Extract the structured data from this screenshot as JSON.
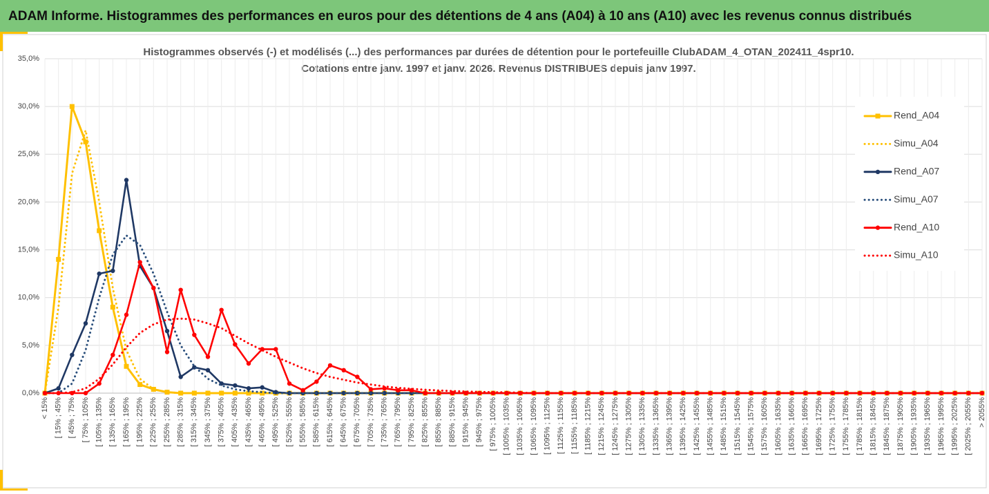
{
  "header": {
    "title": "ADAM Informe. Histogrammes des performances en euros pour des détentions de 4 ans (A04) à 10 ans (A10) avec les revenus connus distribués"
  },
  "chart_data": {
    "type": "line",
    "title": "Histogrammes observés (-) et modélisés (...) des performances par durées de détention pour le portefeuille ClubADAM_4_OTAN_202411_4spr10.",
    "subtitle": "Cotations entre janv. 1997 et janv. 2026. Revenus DISTRIBUES depuis janv 1997.",
    "categories": [
      "< 15%",
      "[ 15% ; 45%",
      "[ 45% ; 75%",
      "[ 75% ; 105%",
      "[ 105% ; 135%",
      "[ 135% ; 165%",
      "[ 165% ; 195%",
      "[ 195% ; 225%",
      "[ 225% ; 255%",
      "[ 255% ; 285%",
      "[ 285% ; 315%",
      "[ 315% ; 345%",
      "[ 345% ; 375%",
      "[ 375% ; 405%",
      "[ 405% ; 435%",
      "[ 435% ; 465%",
      "[ 465% ; 495%",
      "[ 495% ; 525%",
      "[ 525% ; 555%",
      "[ 555% ; 585%",
      "[ 585% ; 615%",
      "[ 615% ; 645%",
      "[ 645% ; 675%",
      "[ 675% ; 705%",
      "[ 705% ; 735%",
      "[ 735% ; 765%",
      "[ 765% ; 795%",
      "[ 795% ; 825%",
      "[ 825% ; 855%",
      "[ 855% ; 885%",
      "[ 885% ; 915%",
      "[ 915% ; 945%",
      "[ 945% ; 975%",
      "[ 975% ; 1005%",
      "[ 1005% ; 1035%",
      "[ 1035% ; 1065%",
      "[ 1065% ; 1095%",
      "[ 1095% ; 1125%",
      "[ 1125% ; 1155%",
      "[ 1155% ; 1185%",
      "[ 1185% ; 1215%",
      "[ 1215% ; 1245%",
      "[ 1245% ; 1275%",
      "[ 1275% ; 1305%",
      "[ 1305% ; 1335%",
      "[ 1335% ; 1365%",
      "[ 1365% ; 1395%",
      "[ 1395% ; 1425%",
      "[ 1425% ; 1455%",
      "[ 1455% ; 1485%",
      "[ 1485% ; 1515%",
      "[ 1515% ; 1545%",
      "[ 1545% ; 1575%",
      "[ 1575% ; 1605%",
      "[ 1605% ; 1635%",
      "[ 1635% ; 1665%",
      "[ 1665% ; 1695%",
      "[ 1695% ; 1725%",
      "[ 1725% ; 1755%",
      "[ 1755% ; 1785%",
      "[ 1785% ; 1815%",
      "[ 1815% ; 1845%",
      "[ 1845% ; 1875%",
      "[ 1875% ; 1905%",
      "[ 1905% ; 1935%",
      "[ 1935% ; 1965%",
      "[ 1965% ; 1995%",
      "[ 1995% ; 2025%",
      "[ 2025% ; 2055%",
      "> 2055%"
    ],
    "series": [
      {
        "name": "Rend_A04",
        "color": "#ffc000",
        "dashed": false,
        "marker": "square",
        "values": [
          0,
          14,
          30,
          26.3,
          17,
          9,
          2.8,
          0.9,
          0.4,
          0.1,
          0,
          0,
          0,
          0,
          0,
          0,
          0,
          0,
          0,
          0,
          0,
          0,
          0,
          0,
          0,
          0,
          0,
          0,
          0,
          0,
          0,
          0,
          0,
          0,
          0,
          0,
          0,
          0,
          0,
          0,
          0,
          0,
          0,
          0,
          0,
          0,
          0,
          0,
          0,
          0,
          0,
          0,
          0,
          0,
          0,
          0,
          0,
          0,
          0,
          0,
          0,
          0,
          0,
          0,
          0,
          0,
          0,
          0,
          0,
          0
        ]
      },
      {
        "name": "Simu_A04",
        "color": "#ffc000",
        "dashed": true,
        "marker": null,
        "values": [
          0,
          9,
          23,
          27.5,
          20,
          11,
          4.5,
          1.5,
          0.4,
          0.1,
          0,
          0,
          0,
          0,
          0,
          0,
          0,
          0,
          0,
          0,
          0,
          0,
          0,
          0,
          0,
          0,
          0,
          0,
          0,
          0,
          0,
          0,
          0,
          0,
          0,
          0,
          0,
          0,
          0,
          0,
          0,
          0,
          0,
          0,
          0,
          0,
          0,
          0,
          0,
          0,
          0,
          0,
          0,
          0,
          0,
          0,
          0,
          0,
          0,
          0,
          0,
          0,
          0,
          0,
          0,
          0,
          0,
          0,
          0,
          0
        ]
      },
      {
        "name": "Rend_A07",
        "color": "#1f3864",
        "dashed": false,
        "marker": "circle",
        "values": [
          0,
          0.5,
          4,
          7.3,
          12.5,
          12.8,
          22.3,
          13.3,
          11,
          6.5,
          1.7,
          2.7,
          2.4,
          1,
          0.8,
          0.5,
          0.6,
          0.1,
          0,
          0,
          0,
          0,
          0,
          0,
          0,
          0,
          0,
          0,
          0,
          0,
          0,
          0,
          0,
          0,
          0,
          0,
          0,
          0,
          0,
          0,
          0,
          0,
          0,
          0,
          0,
          0,
          0,
          0,
          0,
          0,
          0,
          0,
          0,
          0,
          0,
          0,
          0,
          0,
          0,
          0,
          0,
          0,
          0,
          0,
          0,
          0,
          0,
          0,
          0,
          0
        ]
      },
      {
        "name": "Simu_A07",
        "color": "#2a4f7c",
        "dashed": true,
        "marker": null,
        "values": [
          0,
          0,
          1,
          4.5,
          10,
          14.5,
          16.5,
          15.5,
          12.5,
          8.5,
          5,
          2.8,
          1.5,
          0.8,
          0.4,
          0.2,
          0.1,
          0,
          0,
          0,
          0,
          0,
          0,
          0,
          0,
          0,
          0,
          0,
          0,
          0,
          0,
          0,
          0,
          0,
          0,
          0,
          0,
          0,
          0,
          0,
          0,
          0,
          0,
          0,
          0,
          0,
          0,
          0,
          0,
          0,
          0,
          0,
          0,
          0,
          0,
          0,
          0,
          0,
          0,
          0,
          0,
          0,
          0,
          0,
          0,
          0,
          0,
          0,
          0,
          0
        ]
      },
      {
        "name": "Rend_A10",
        "color": "#ff0000",
        "dashed": false,
        "marker": "circle",
        "values": [
          0,
          0,
          0,
          0,
          1,
          4,
          8.2,
          13.7,
          11,
          4.3,
          10.8,
          6.1,
          3.8,
          8.7,
          5.1,
          3.1,
          4.6,
          4.6,
          1,
          0.3,
          1.2,
          2.9,
          2.4,
          1.7,
          0.4,
          0.5,
          0.3,
          0.3,
          0,
          0,
          0,
          0,
          0,
          0,
          0,
          0,
          0,
          0,
          0,
          0,
          0,
          0,
          0,
          0,
          0,
          0,
          0,
          0,
          0,
          0,
          0,
          0,
          0,
          0,
          0,
          0,
          0,
          0,
          0,
          0,
          0,
          0,
          0,
          0,
          0,
          0,
          0,
          0,
          0,
          0
        ]
      },
      {
        "name": "Simu_A10",
        "color": "#ff0000",
        "dashed": true,
        "marker": null,
        "values": [
          0,
          0,
          0.1,
          0.5,
          1.5,
          3,
          4.8,
          6.3,
          7.2,
          7.7,
          7.8,
          7.7,
          7.3,
          6.8,
          6,
          5.2,
          4.5,
          3.8,
          3.2,
          2.6,
          2.1,
          1.7,
          1.4,
          1.1,
          0.9,
          0.7,
          0.55,
          0.45,
          0.35,
          0.28,
          0.22,
          0.17,
          0.13,
          0.1,
          0.08,
          0.05,
          0,
          0,
          0,
          0,
          0,
          0,
          0,
          0,
          0,
          0,
          0,
          0,
          0,
          0,
          0,
          0,
          0,
          0,
          0,
          0,
          0,
          0,
          0,
          0,
          0,
          0,
          0,
          0,
          0,
          0,
          0,
          0,
          0,
          0
        ]
      }
    ],
    "ylim": [
      0,
      35
    ],
    "yticks": [
      {
        "value": 0,
        "label": "0,0%"
      },
      {
        "value": 5,
        "label": "5,0%"
      },
      {
        "value": 10,
        "label": "10,0%"
      },
      {
        "value": 15,
        "label": "15,0%"
      },
      {
        "value": 20,
        "label": "20,0%"
      },
      {
        "value": 25,
        "label": "25,0%"
      },
      {
        "value": 30,
        "label": "30,0%"
      },
      {
        "value": 35,
        "label": "35,0%"
      }
    ],
    "grid": true,
    "legend": "right"
  }
}
